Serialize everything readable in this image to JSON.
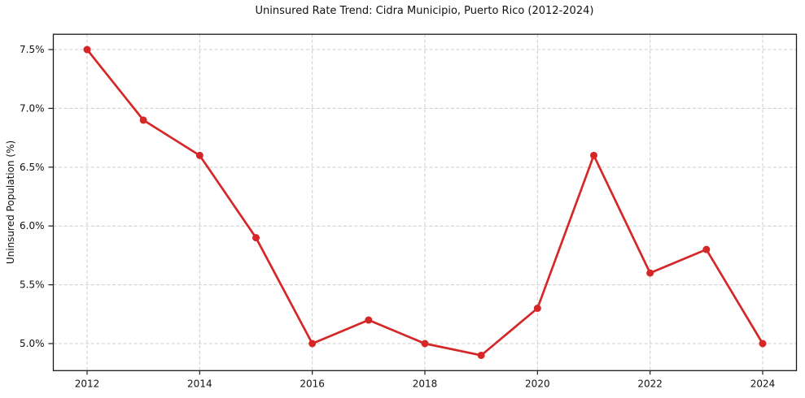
{
  "chart_data": {
    "type": "line",
    "title": "Uninsured Rate Trend: Cidra Municipio, Puerto Rico (2012-2024)",
    "xlabel": "",
    "ylabel": "Uninsured Population (%)",
    "x": [
      2012,
      2013,
      2014,
      2015,
      2016,
      2017,
      2018,
      2019,
      2020,
      2021,
      2022,
      2023,
      2024
    ],
    "series": [
      {
        "name": "Uninsured Rate",
        "values": [
          7.5,
          6.9,
          6.6,
          5.9,
          5.0,
          5.2,
          5.0,
          4.9,
          5.3,
          6.6,
          5.6,
          5.8,
          5.0
        ]
      }
    ],
    "xticks": [
      2012,
      2014,
      2016,
      2018,
      2020,
      2022,
      2024
    ],
    "xtick_labels": [
      "2012",
      "2014",
      "2016",
      "2018",
      "2020",
      "2022",
      "2024"
    ],
    "yticks": [
      5.0,
      5.5,
      6.0,
      6.5,
      7.0,
      7.5
    ],
    "ytick_labels": [
      "5.0%",
      "5.5%",
      "6.0%",
      "6.5%",
      "7.0%",
      "7.5%"
    ],
    "xlim": [
      2011.4,
      2024.6
    ],
    "ylim": [
      4.77,
      7.63
    ],
    "grid": true,
    "grid_style": "dashed",
    "grid_color": "#cccccc",
    "line_color": "#d62728",
    "marker": "circle",
    "marker_color": "#d62728",
    "spine_color": "#1a1a1a",
    "background_color": "#ffffff",
    "legend": null
  }
}
